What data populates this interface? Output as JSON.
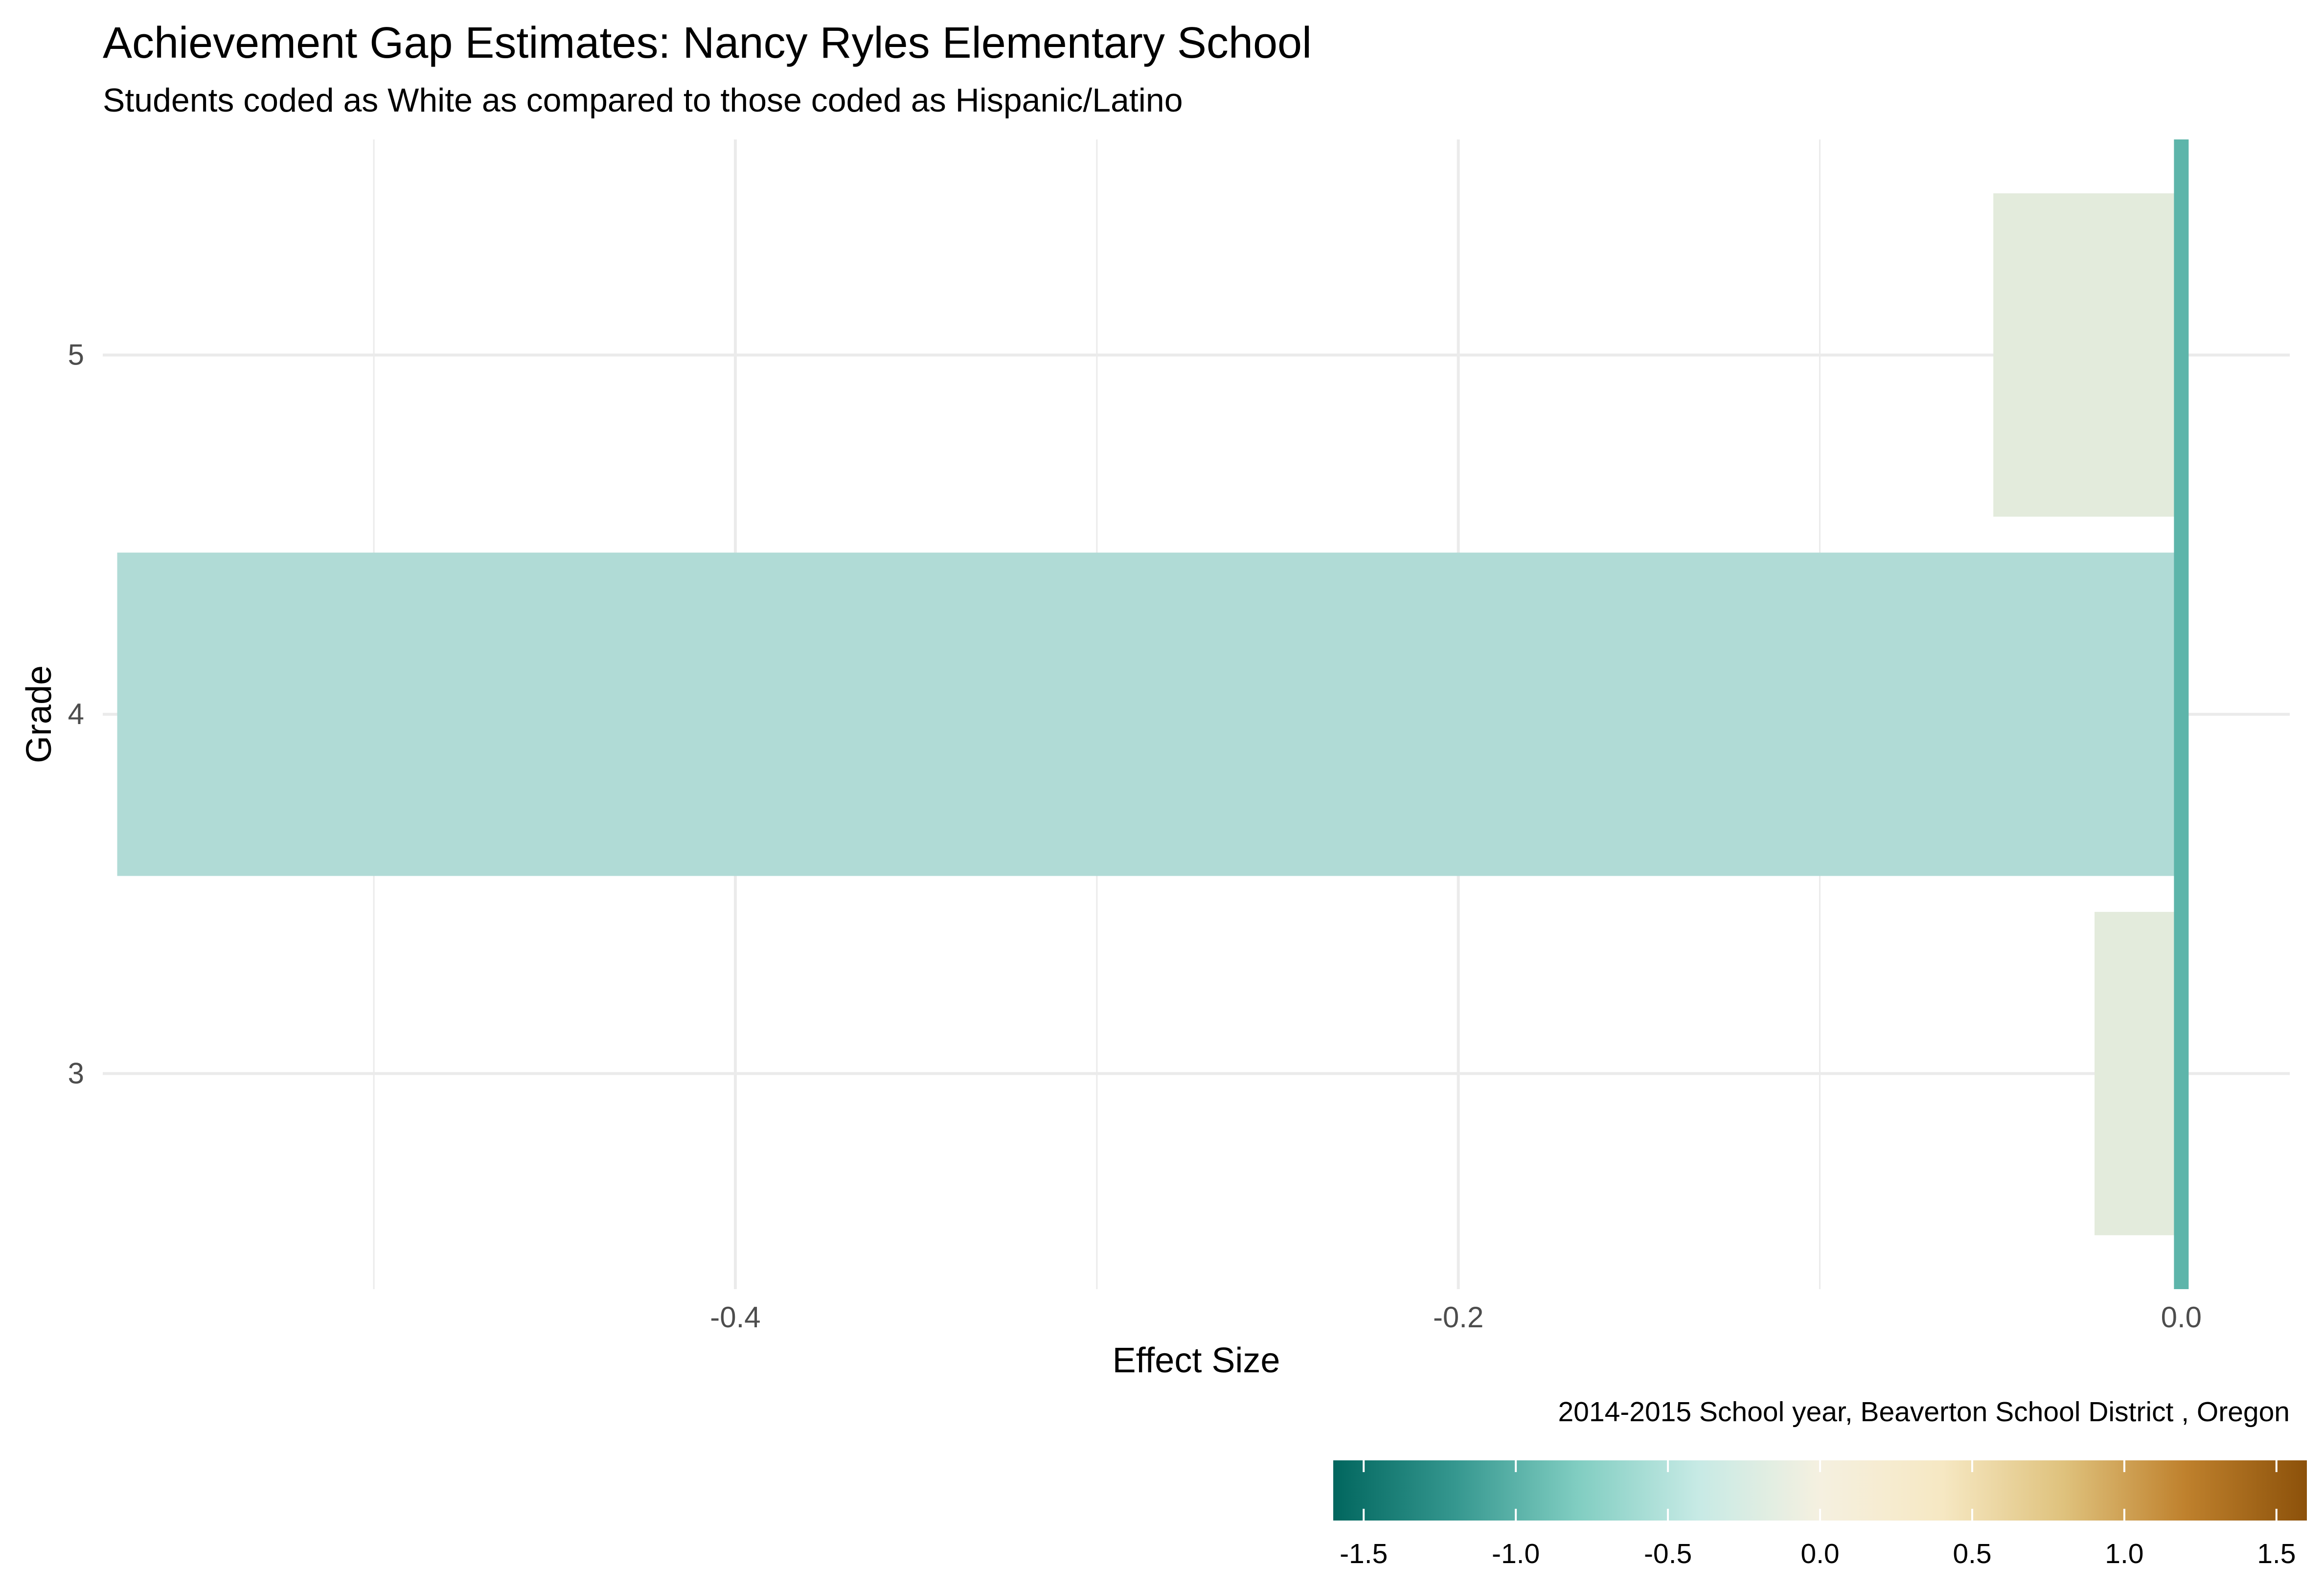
{
  "chart_data": {
    "type": "bar",
    "orientation": "horizontal",
    "title": "Achievement Gap Estimates: Nancy Ryles Elementary School",
    "subtitle": "Students coded as White as compared to those coded as Hispanic/Latino",
    "xlabel": "Effect Size",
    "ylabel": "Grade",
    "caption": "2014-2015 School year,  Beaverton School District , Oregon",
    "categories": [
      "3",
      "4",
      "5"
    ],
    "values": [
      -0.024,
      -0.571,
      -0.052
    ],
    "bar_colors": [
      "#e3ebdc",
      "#b0dbd6",
      "#e3ebdc"
    ],
    "xlim": [
      -0.575,
      0.03
    ],
    "x_ticks": [
      -0.4,
      -0.2,
      0.0
    ],
    "x_tick_labels": [
      "-0.4",
      "-0.2",
      "0.0"
    ],
    "reference_line": {
      "x": 0.0,
      "color": "#5db5aa"
    },
    "grid": true,
    "legend": {
      "type": "colorbar",
      "position": "bottom-right",
      "range": [
        -1.6,
        1.6
      ],
      "ticks": [
        -1.5,
        -1.0,
        -0.5,
        0.0,
        0.5,
        1.0,
        1.5
      ],
      "tick_labels": [
        "-1.5",
        "-1.0",
        "-0.5",
        "0.0",
        "0.5",
        "1.0",
        "1.5"
      ],
      "palette": [
        "#01665e",
        "#35978f",
        "#80cdc1",
        "#c7eae5",
        "#f5f0e0",
        "#f6e8c3",
        "#dfc27d",
        "#bf812d",
        "#8c510a"
      ]
    }
  }
}
